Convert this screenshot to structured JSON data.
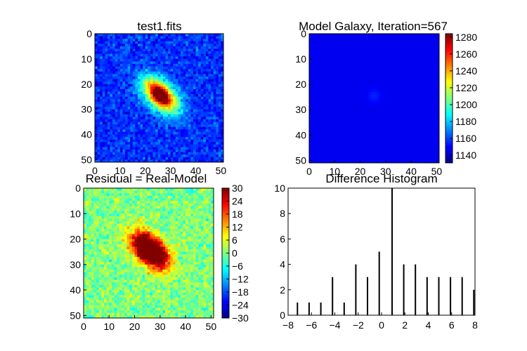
{
  "figure": {
    "panels": [
      {
        "id": "real",
        "title": "test1.fits",
        "xticks": [
          "0",
          "10",
          "20",
          "30",
          "40",
          "50"
        ],
        "yticks": [
          "0",
          "10",
          "20",
          "30",
          "40",
          "50"
        ]
      },
      {
        "id": "model",
        "title": "Model Galaxy, Iteration=567",
        "xticks": [
          "0",
          "10",
          "20",
          "30",
          "40",
          "50"
        ],
        "yticks": [
          "0",
          "10",
          "20",
          "30",
          "40",
          "50"
        ],
        "colorbar": {
          "ticks": [
            "1140",
            "1160",
            "1180",
            "1200",
            "1220",
            "1240",
            "1260",
            "1280"
          ],
          "range": [
            1131,
            1284
          ]
        }
      },
      {
        "id": "residual",
        "title": "Residual = Real-Model",
        "xticks": [
          "0",
          "10",
          "20",
          "30",
          "40",
          "50"
        ],
        "yticks": [
          "0",
          "10",
          "20",
          "30",
          "40",
          "50"
        ],
        "colorbar": {
          "ticks": [
            "30",
            "24",
            "18",
            "12",
            "6",
            "0",
            "−6",
            "−12",
            "−18",
            "−24",
            "−30"
          ],
          "range": [
            -30,
            30
          ]
        }
      },
      {
        "id": "histogram",
        "title": "Difference Histogram",
        "xticks": [
          "−8",
          "−6",
          "−4",
          "−2",
          "0",
          "2",
          "4",
          "6",
          "8"
        ],
        "yticks": [
          "0",
          "2",
          "4",
          "6",
          "8",
          "10"
        ]
      }
    ],
    "colormap": "jet"
  },
  "chart_data": [
    {
      "type": "heatmap",
      "title": "test1.fits",
      "x_range": [
        0,
        51
      ],
      "y_range": [
        0,
        51
      ],
      "y_inverted": true,
      "colormap": "jet",
      "description_of_values": "elliptical galaxy centered near (25, 24), bright core (red) on noisy blue background, elongated along diagonal"
    },
    {
      "type": "heatmap",
      "title": "Model Galaxy, Iteration=567",
      "x_range": [
        0,
        51
      ],
      "y_range": [
        0,
        51
      ],
      "y_inverted": true,
      "colormap": "jet",
      "color_range": [
        1131,
        1284
      ],
      "colorbar_ticks": [
        1140,
        1160,
        1180,
        1200,
        1220,
        1240,
        1260,
        1280
      ]
    },
    {
      "type": "heatmap",
      "title": "Residual = Real-Model",
      "x_range": [
        0,
        51
      ],
      "y_range": [
        0,
        51
      ],
      "y_inverted": true,
      "colormap": "jet",
      "color_range": [
        -30,
        30
      ],
      "colorbar_ticks": [
        30,
        24,
        18,
        12,
        6,
        0,
        -6,
        -12,
        -18,
        -24,
        -30
      ]
    },
    {
      "type": "bar",
      "title": "Difference Histogram",
      "xlim": [
        -8,
        8
      ],
      "ylim": [
        0,
        10
      ],
      "x": [
        -7.2,
        -6.2,
        -5.2,
        -4.2,
        -3.2,
        -2.2,
        -1.2,
        -0.2,
        0.9,
        1.9,
        2.9,
        3.9,
        4.9,
        5.9,
        6.9,
        7.9
      ],
      "values": [
        1,
        1,
        1,
        3,
        1,
        4,
        3,
        5,
        10,
        4,
        4,
        3,
        3,
        3,
        3,
        2
      ]
    }
  ]
}
